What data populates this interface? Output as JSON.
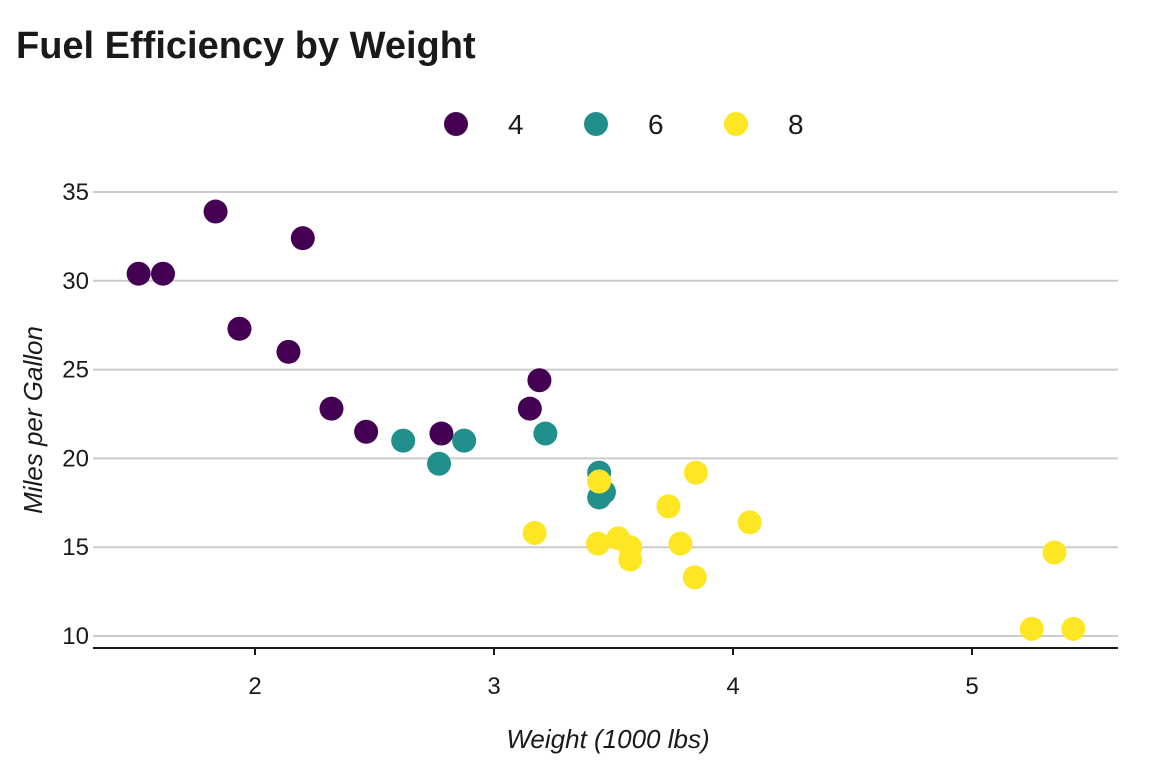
{
  "chart_data": {
    "type": "scatter",
    "title": "Fuel Efficiency by Weight",
    "xlabel": "Weight (1000 lbs)",
    "ylabel": "Miles per Gallon",
    "xlim": [
      1.32,
      5.61
    ],
    "ylim": [
      9.3,
      35.7
    ],
    "xticks": [
      2,
      3,
      4,
      5
    ],
    "yticks": [
      10,
      15,
      20,
      25,
      30,
      35
    ],
    "grid": "horizontal",
    "legend_position": "top",
    "series": [
      {
        "name": "4",
        "color": "#440154",
        "points": [
          [
            2.32,
            22.8
          ],
          [
            3.19,
            24.4
          ],
          [
            3.15,
            22.8
          ],
          [
            2.2,
            32.4
          ],
          [
            1.615,
            30.4
          ],
          [
            1.835,
            33.9
          ],
          [
            2.465,
            21.5
          ],
          [
            1.935,
            27.3
          ],
          [
            2.14,
            26.0
          ],
          [
            1.513,
            30.4
          ],
          [
            2.78,
            21.4
          ]
        ]
      },
      {
        "name": "6",
        "color": "#21908C",
        "points": [
          [
            2.62,
            21.0
          ],
          [
            2.875,
            21.0
          ],
          [
            3.215,
            21.4
          ],
          [
            3.46,
            18.1
          ],
          [
            3.44,
            19.2
          ],
          [
            3.44,
            17.8
          ],
          [
            2.77,
            19.7
          ]
        ]
      },
      {
        "name": "8",
        "color": "#FDE725",
        "points": [
          [
            3.44,
            18.7
          ],
          [
            3.57,
            14.3
          ],
          [
            4.07,
            16.4
          ],
          [
            3.73,
            17.3
          ],
          [
            3.78,
            15.2
          ],
          [
            5.25,
            10.4
          ],
          [
            5.424,
            10.4
          ],
          [
            5.345,
            14.7
          ],
          [
            3.52,
            15.5
          ],
          [
            3.435,
            15.2
          ],
          [
            3.84,
            13.3
          ],
          [
            3.845,
            19.2
          ],
          [
            3.17,
            15.8
          ],
          [
            3.57,
            15.0
          ]
        ]
      }
    ]
  }
}
